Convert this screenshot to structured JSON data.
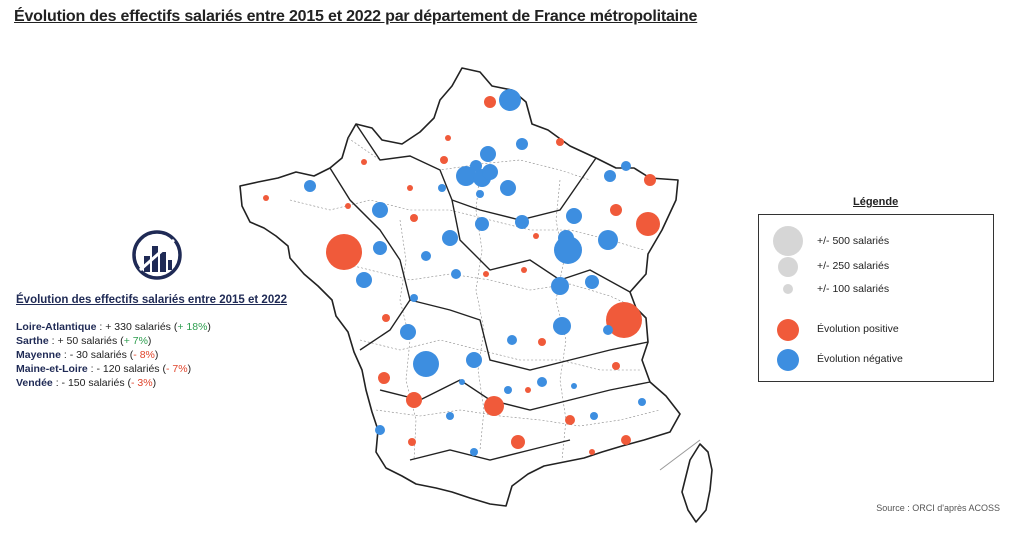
{
  "title": "Évolution des effectifs salariés entre 2015 et 2022 par département de France métropolitaine",
  "panel": {
    "title": "Évolution des effectifs salariés entre 2015 et 2022",
    "rows": [
      {
        "dep": "Loire-Atlantique",
        "text": " : + 330 salariés (",
        "pct": "+ 18%",
        "sign": "pos",
        "close": ")"
      },
      {
        "dep": "Sarthe",
        "text": " : + 50 salariés (",
        "pct": "+ 7%",
        "sign": "pos",
        "close": ")"
      },
      {
        "dep": "Mayenne",
        "text": " : - 30 salariés (",
        "pct": "- 8%",
        "sign": "neg",
        "close": ")"
      },
      {
        "dep": "Maine-et-Loire",
        "text": " : - 120 salariés (",
        "pct": "- 7%",
        "sign": "neg",
        "close": ")"
      },
      {
        "dep": "Vendée",
        "text": " : - 150 salariés (",
        "pct": "- 3%",
        "sign": "neg",
        "close": ")"
      }
    ]
  },
  "legend": {
    "title": "Légende",
    "size_items": [
      {
        "label": "+/- 500 salariés"
      },
      {
        "label": "+/- 250 salariés"
      },
      {
        "label": "+/- 100 salariés"
      }
    ],
    "color_items": [
      {
        "label": "Évolution positive",
        "color": "#f05a3a"
      },
      {
        "label": "Évolution négative",
        "color": "#3d8ee0"
      }
    ]
  },
  "colors": {
    "positive": "#f05a3a",
    "negative": "#3d8ee0",
    "legend_size": "#d6d6d6",
    "logo": "#1f2a55"
  },
  "source": "Source : ORCI d'après ACOSS"
}
